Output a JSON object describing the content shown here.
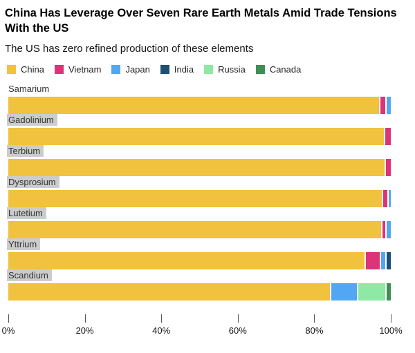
{
  "header": {
    "title": "China Has Leverage Over Seven Rare Earth Metals Amid Trade Tensions With the US",
    "subtitle": "The US has zero refined production of these elements"
  },
  "legend": [
    {
      "label": "China",
      "color": "#F0C23E"
    },
    {
      "label": "Vietnam",
      "color": "#DC3379"
    },
    {
      "label": "Japan",
      "color": "#52A7F2"
    },
    {
      "label": "India",
      "color": "#1D4F73"
    },
    {
      "label": "Russia",
      "color": "#8DE9A3"
    },
    {
      "label": "Canada",
      "color": "#3F8E55"
    }
  ],
  "styles": {
    "category_label_bg": "#CCCCCC",
    "axis_tick_color": "#555555"
  },
  "chart_data": {
    "type": "bar",
    "orientation": "horizontal",
    "stacked": true,
    "unit": "percent",
    "xlim": [
      0,
      100
    ],
    "x_ticks": [
      "0%",
      "20%",
      "40%",
      "60%",
      "80%",
      "100%"
    ],
    "grid": false,
    "legend_position": "top",
    "series_order": [
      "China",
      "Vietnam",
      "Japan",
      "India",
      "Russia",
      "Canada"
    ],
    "rows": [
      {
        "category": "Samarium",
        "label_highlighted": false,
        "segments": [
          {
            "name": "China",
            "value": 97.2
          },
          {
            "name": "Vietnam",
            "value": 1.8
          },
          {
            "name": "Japan",
            "value": 1.0
          }
        ]
      },
      {
        "category": "Gadolinium",
        "label_highlighted": true,
        "segments": [
          {
            "name": "China",
            "value": 98.6
          },
          {
            "name": "Vietnam",
            "value": 1.4
          }
        ]
      },
      {
        "category": "Terbium",
        "label_highlighted": true,
        "segments": [
          {
            "name": "China",
            "value": 98.8
          },
          {
            "name": "Vietnam",
            "value": 1.2
          }
        ]
      },
      {
        "category": "Dysprosium",
        "label_highlighted": true,
        "segments": [
          {
            "name": "China",
            "value": 98.0
          },
          {
            "name": "Vietnam",
            "value": 1.5
          },
          {
            "name": "Japan",
            "value": 0.5
          }
        ]
      },
      {
        "category": "Lutetium",
        "label_highlighted": true,
        "segments": [
          {
            "name": "China",
            "value": 97.9
          },
          {
            "name": "Vietnam",
            "value": 1.1
          },
          {
            "name": "Japan",
            "value": 1.0
          }
        ]
      },
      {
        "category": "Yttrium",
        "label_highlighted": true,
        "segments": [
          {
            "name": "China",
            "value": 93.5
          },
          {
            "name": "Vietnam",
            "value": 4.0
          },
          {
            "name": "Japan",
            "value": 1.5
          },
          {
            "name": "India",
            "value": 1.0
          }
        ]
      },
      {
        "category": "Scandium",
        "label_highlighted": true,
        "segments": [
          {
            "name": "China",
            "value": 84.5
          },
          {
            "name": "Japan",
            "value": 7.0
          },
          {
            "name": "Russia",
            "value": 7.5
          },
          {
            "name": "Canada",
            "value": 1.0
          }
        ]
      }
    ]
  }
}
